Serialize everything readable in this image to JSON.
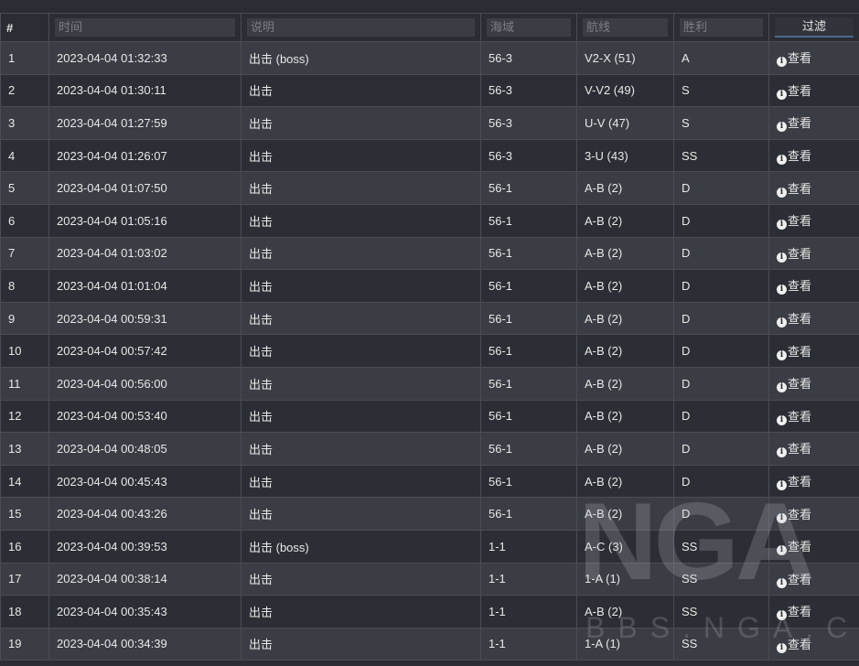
{
  "headers": {
    "num": "#",
    "time": "时间",
    "desc": "说明",
    "area": "海域",
    "route": "航线",
    "result": "胜利",
    "filter": "过滤"
  },
  "view_label": "查看",
  "info_icon": "info-circle-icon",
  "watermark": {
    "logo": "NGA",
    "site": "BBS.NGA.CN"
  },
  "rows": [
    [
      "1",
      "2023-04-04 01:32:33",
      "出击 (boss)",
      "56-3",
      "V2-X (51)",
      "A"
    ],
    [
      "2",
      "2023-04-04 01:30:11",
      "出击",
      "56-3",
      "V-V2 (49)",
      "S"
    ],
    [
      "3",
      "2023-04-04 01:27:59",
      "出击",
      "56-3",
      "U-V (47)",
      "S"
    ],
    [
      "4",
      "2023-04-04 01:26:07",
      "出击",
      "56-3",
      "3-U (43)",
      "SS"
    ],
    [
      "5",
      "2023-04-04 01:07:50",
      "出击",
      "56-1",
      "A-B (2)",
      "D"
    ],
    [
      "6",
      "2023-04-04 01:05:16",
      "出击",
      "56-1",
      "A-B (2)",
      "D"
    ],
    [
      "7",
      "2023-04-04 01:03:02",
      "出击",
      "56-1",
      "A-B (2)",
      "D"
    ],
    [
      "8",
      "2023-04-04 01:01:04",
      "出击",
      "56-1",
      "A-B (2)",
      "D"
    ],
    [
      "9",
      "2023-04-04 00:59:31",
      "出击",
      "56-1",
      "A-B (2)",
      "D"
    ],
    [
      "10",
      "2023-04-04 00:57:42",
      "出击",
      "56-1",
      "A-B (2)",
      "D"
    ],
    [
      "11",
      "2023-04-04 00:56:00",
      "出击",
      "56-1",
      "A-B (2)",
      "D"
    ],
    [
      "12",
      "2023-04-04 00:53:40",
      "出击",
      "56-1",
      "A-B (2)",
      "D"
    ],
    [
      "13",
      "2023-04-04 00:48:05",
      "出击",
      "56-1",
      "A-B (2)",
      "D"
    ],
    [
      "14",
      "2023-04-04 00:45:43",
      "出击",
      "56-1",
      "A-B (2)",
      "D"
    ],
    [
      "15",
      "2023-04-04 00:43:26",
      "出击",
      "56-1",
      "A-B (2)",
      "D"
    ],
    [
      "16",
      "2023-04-04 00:39:53",
      "出击 (boss)",
      "1-1",
      "A-C (3)",
      "SS"
    ],
    [
      "17",
      "2023-04-04 00:38:14",
      "出击",
      "1-1",
      "1-A (1)",
      "SS"
    ],
    [
      "18",
      "2023-04-04 00:35:43",
      "出击",
      "1-1",
      "A-B (2)",
      "SS"
    ],
    [
      "19",
      "2023-04-04 00:34:39",
      "出击",
      "1-1",
      "1-A (1)",
      "SS"
    ]
  ]
}
